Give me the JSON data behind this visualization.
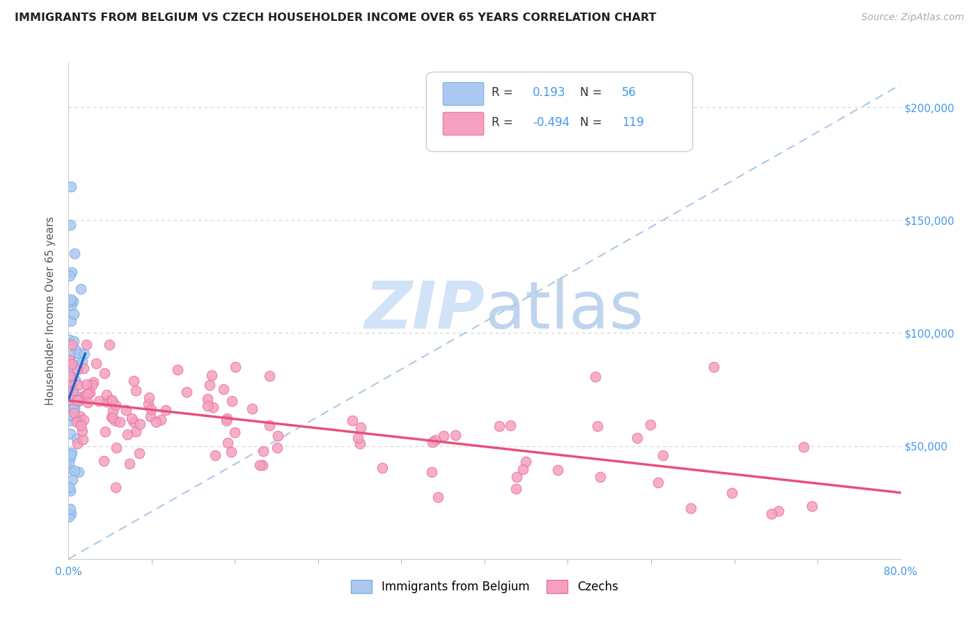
{
  "title": "IMMIGRANTS FROM BELGIUM VS CZECH HOUSEHOLDER INCOME OVER 65 YEARS CORRELATION CHART",
  "source": "Source: ZipAtlas.com",
  "ylabel": "Householder Income Over 65 years",
  "watermark_zip": "ZIP",
  "watermark_atlas": "atlas",
  "belgium_R": 0.193,
  "belgium_N": 56,
  "czech_R": -0.494,
  "czech_N": 119,
  "belgium_color": "#aac8f0",
  "czech_color": "#f5a0c0",
  "belgium_edge_color": "#7aaee0",
  "czech_edge_color": "#e870a0",
  "belgium_line_color": "#2266cc",
  "czech_line_color": "#e8507a",
  "dashed_line_color": "#aac8e8",
  "ytick_labels": [
    "$50,000",
    "$100,000",
    "$150,000",
    "$200,000"
  ],
  "ytick_values": [
    50000,
    100000,
    150000,
    200000
  ],
  "ytick_color": "#4499ee",
  "xlim": [
    0.0,
    0.8
  ],
  "ylim": [
    0,
    220000
  ],
  "legend_label_belgium": "Immigrants from Belgium",
  "legend_label_czech": "Czechs"
}
